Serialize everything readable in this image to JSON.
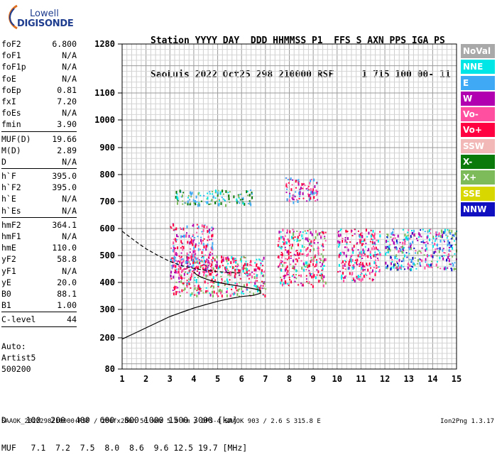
{
  "logo": {
    "line1": "Lowell",
    "line2": "DIGISONDE"
  },
  "header": {
    "line1": "Station YYYY DAY  DDD HHMMSS P1  FFS S AXN PPS IGA PS",
    "line2": "SaoLuis 2022 Oct25 298 210000 RSF     1 715 100 00- 11"
  },
  "params": [
    {
      "name": "foF2",
      "value": "6.800"
    },
    {
      "name": "foF1",
      "value": "N/A"
    },
    {
      "name": "foF1p",
      "value": "N/A"
    },
    {
      "name": "foE",
      "value": "N/A"
    },
    {
      "name": "foEp",
      "value": "0.81"
    },
    {
      "name": "fxI",
      "value": "7.20"
    },
    {
      "name": "foEs",
      "value": "N/A"
    },
    {
      "name": "fmin",
      "value": "3.90"
    },
    {
      "sep": true
    },
    {
      "name": "MUF(D)",
      "value": "19.66"
    },
    {
      "name": "M(D)",
      "value": "2.89"
    },
    {
      "name": "D",
      "value": "N/A"
    },
    {
      "sep": true
    },
    {
      "name": "h`F",
      "value": "395.0"
    },
    {
      "name": "h`F2",
      "value": "395.0"
    },
    {
      "name": "h`E",
      "value": "N/A"
    },
    {
      "name": "h`Es",
      "value": "N/A"
    },
    {
      "sep": true
    },
    {
      "name": "hmF2",
      "value": "364.1"
    },
    {
      "name": "hmF1",
      "value": "N/A"
    },
    {
      "name": "hmE",
      "value": "110.0"
    },
    {
      "name": "yF2",
      "value": "58.8"
    },
    {
      "name": "yF1",
      "value": "N/A"
    },
    {
      "name": "yE",
      "value": "20.0"
    },
    {
      "name": "B0",
      "value": "88.1"
    },
    {
      "name": "B1",
      "value": "1.00"
    },
    {
      "sep": true
    },
    {
      "name": "C-level",
      "value": "44"
    },
    {
      "sep": true
    }
  ],
  "auto": {
    "line1": "Auto:",
    "line2": "Artist5",
    "line3": "500200"
  },
  "legend": [
    {
      "label": "NoVal",
      "color": "#a9a9a9"
    },
    {
      "label": "NNE",
      "color": "#00e5e5"
    },
    {
      "label": "E",
      "color": "#3fa9f5"
    },
    {
      "label": "W",
      "color": "#b000b0"
    },
    {
      "label": "Vo-",
      "color": "#ff4fa0"
    },
    {
      "label": "Vo+",
      "color": "#ff0040"
    },
    {
      "label": "SSW",
      "color": "#f2b8b8"
    },
    {
      "label": "X-",
      "color": "#0a7a0a"
    },
    {
      "label": "X+",
      "color": "#7dbb5a"
    },
    {
      "label": "SSE",
      "color": "#d8d800"
    },
    {
      "label": "NNW",
      "color": "#1010c0"
    }
  ],
  "muf_table": {
    "line1": "D    100  200  400  600  800 1000 1500 3000 [km]",
    "line2": "MUF   7.1  7.2  7.5  8.0  8.6  9.6 12.5 19.7 [MHz]"
  },
  "footer": "SAAOK_2022298210000.RSF / 280fx256h 50 kHz 5.0 km / DPS-4 SAAOK 903 / 2.6 S 315.8 E",
  "version": "Ion2Png 1.3.17",
  "chart_data": {
    "type": "scatter",
    "title": "",
    "xlabel": "",
    "ylabel": "",
    "xlim": [
      1,
      15
    ],
    "ylim": [
      80,
      1280
    ],
    "x_ticks": [
      1,
      2,
      3,
      4,
      5,
      6,
      7,
      8,
      9,
      10,
      11,
      12,
      13,
      14,
      15
    ],
    "y_ticks": [
      80,
      200,
      300,
      400,
      500,
      600,
      700,
      800,
      900,
      1000,
      1100,
      1280
    ],
    "grid": true,
    "legend_placement": "right",
    "traces": [
      {
        "style": "solid",
        "points": [
          [
            1.0,
            195
          ],
          [
            1.5,
            215
          ],
          [
            2.0,
            235
          ],
          [
            2.5,
            255
          ],
          [
            3.0,
            275
          ],
          [
            3.5,
            290
          ],
          [
            4.0,
            305
          ],
          [
            4.5,
            318
          ],
          [
            5.0,
            330
          ],
          [
            5.5,
            340
          ],
          [
            6.0,
            348
          ],
          [
            6.5,
            352
          ],
          [
            6.8,
            360
          ],
          [
            6.8,
            370
          ],
          [
            6.6,
            375
          ],
          [
            6.3,
            380
          ],
          [
            6.0,
            385
          ],
          [
            5.5,
            392
          ],
          [
            5.0,
            400
          ],
          [
            4.6,
            410
          ],
          [
            4.3,
            420
          ],
          [
            4.1,
            430
          ],
          [
            4.0,
            440
          ]
        ]
      },
      {
        "style": "dashed",
        "points": [
          [
            1.0,
            590
          ],
          [
            1.3,
            570
          ],
          [
            1.6,
            550
          ],
          [
            2.0,
            525
          ],
          [
            2.5,
            500
          ],
          [
            3.0,
            478
          ],
          [
            3.5,
            462
          ],
          [
            4.0,
            452
          ],
          [
            4.5,
            445
          ],
          [
            5.0,
            440
          ],
          [
            5.5,
            437
          ],
          [
            6.0,
            435
          ]
        ]
      }
    ],
    "echo_regions": [
      {
        "x": [
          3.0,
          7.0
        ],
        "y": [
          350,
          500
        ],
        "mode": "Vo+"
      },
      {
        "x": [
          3.0,
          4.8
        ],
        "y": [
          440,
          620
        ],
        "mode": "W"
      },
      {
        "x": [
          3.2,
          6.5
        ],
        "y": [
          690,
          745
        ],
        "mode": "X+"
      },
      {
        "x": [
          7.5,
          9.5
        ],
        "y": [
          390,
          600
        ],
        "mode": "Vo+"
      },
      {
        "x": [
          7.8,
          9.2
        ],
        "y": [
          700,
          790
        ],
        "mode": "W"
      },
      {
        "x": [
          10.0,
          11.8
        ],
        "y": [
          410,
          600
        ],
        "mode": "Vo-"
      },
      {
        "x": [
          12.0,
          15.0
        ],
        "y": [
          450,
          600
        ],
        "mode": "NNE"
      }
    ]
  }
}
